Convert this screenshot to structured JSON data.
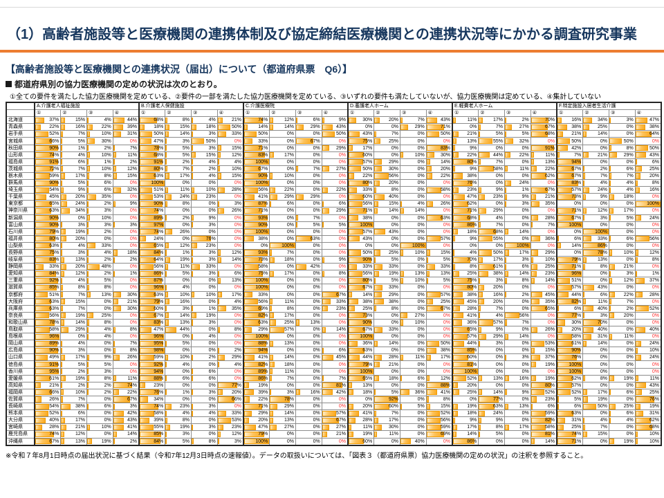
{
  "title": "（1）高齢者施設等と医療機関の連携体制及び協定締結医療機関との連携状況等にかかる調査研究事業",
  "section_title": "【高齢者施設等と医療機関との連携状況（届出）について（都道府県票　Q6）】",
  "bullet": "都道府県別の協力医療機関の定めの状況は次のとおり。",
  "legend": "①全ての要件を満たした協力医療機関を定めている、②要件の一部を満たした協力医療機関を定めている、③いずれの要件も満たしていないが、協力医療機関は定めている、④集計していない",
  "footnote": "※令和７年8月1日時点の届出状況に基づく結果（令和7年12月3日時点の速報値）。データの取扱いについては、「図表３（都道府県票）協力医療機関の定めの状況」の注釈を参照すること。",
  "colors": {
    "accent_orange": "#ed7d31",
    "title_navy": "#17375e",
    "bar_fill_light": "#fff1d2",
    "bar_fill_dark": "#fba81c",
    "bar_border": "#f09c05",
    "red_zero": "#ff2a2a"
  },
  "table": {
    "groups": [
      "A.介護老人福祉施設",
      "B.介護老人保健施設",
      "C.介護医療院",
      "D.養護老人ホーム",
      "E.軽費老人ホーム",
      "F.特定施設入居者生活介護"
    ],
    "sub_cols": [
      "①",
      "②",
      "③",
      "④"
    ],
    "unit": "%",
    "rows": [
      {
        "name": "北海道",
        "v": [
          37,
          15,
          4,
          44,
          68,
          8,
          4,
          21,
          74,
          12,
          6,
          9,
          30,
          20,
          7,
          43,
          11,
          17,
          2,
          70,
          16,
          34,
          3,
          47
        ]
      },
      {
        "name": "青森県",
        "v": [
          22,
          16,
          22,
          39,
          18,
          15,
          18,
          50,
          14,
          14,
          29,
          43,
          0,
          0,
          29,
          71,
          0,
          7,
          27,
          67,
          38,
          25,
          0,
          38
        ]
      },
      {
        "name": "岩手県",
        "v": [
          52,
          7,
          10,
          31,
          50,
          14,
          3,
          33,
          50,
          0,
          0,
          50,
          43,
          7,
          0,
          50,
          21,
          5,
          5,
          68,
          21,
          14,
          0,
          64
        ]
      },
      {
        "name": "宮城県",
        "v": [
          66,
          5,
          30,
          0,
          47,
          3,
          50,
          0,
          33,
          0,
          67,
          0,
          75,
          25,
          0,
          0,
          13,
          55,
          32,
          0,
          50,
          0,
          50,
          0
        ]
      },
      {
        "name": "秋田県",
        "v": [
          90,
          1,
          2,
          7,
          78,
          5,
          3,
          15,
          71,
          0,
          0,
          29,
          17,
          0,
          0,
          83,
          9,
          0,
          0,
          91,
          42,
          0,
          8,
          50
        ]
      },
      {
        "name": "山形県",
        "v": [
          74,
          4,
          10,
          11,
          68,
          5,
          15,
          12,
          83,
          17,
          0,
          0,
          60,
          0,
          10,
          30,
          22,
          44,
          22,
          11,
          7,
          21,
          29,
          43
        ]
      },
      {
        "name": "福島県",
        "v": [
          91,
          6,
          1,
          2,
          91,
          2,
          4,
          4,
          100,
          0,
          0,
          0,
          57,
          29,
          0,
          14,
          80,
          7,
          0,
          13,
          94,
          0,
          0,
          6
        ]
      },
      {
        "name": "茨城県",
        "v": [
          72,
          7,
          10,
          12,
          80,
          7,
          2,
          10,
          67,
          0,
          7,
          27,
          50,
          30,
          0,
          20,
          9,
          58,
          11,
          22,
          67,
          2,
          6,
          25
        ]
      },
      {
        "name": "栃木県",
        "v": [
          59,
          17,
          8,
          15,
          63,
          17,
          4,
          15,
          90,
          10,
          0,
          0,
          22,
          56,
          0,
          22,
          38,
          0,
          0,
          62,
          67,
          7,
          7,
          20
        ]
      },
      {
        "name": "群馬県",
        "v": [
          90,
          5,
          6,
          0,
          100,
          0,
          0,
          0,
          100,
          0,
          0,
          0,
          80,
          20,
          0,
          0,
          76,
          0,
          24,
          0,
          83,
          4,
          4,
          8
        ]
      },
      {
        "name": "埼玉県",
        "v": [
          54,
          9,
          6,
          32,
          51,
          11,
          10,
          28,
          56,
          22,
          0,
          22,
          33,
          8,
          0,
          58,
          23,
          9,
          1,
          67,
          57,
          24,
          4,
          16
        ]
      },
      {
        "name": "千葉県",
        "v": [
          45,
          20,
          35,
          0,
          53,
          24,
          23,
          0,
          41,
          29,
          29,
          0,
          60,
          40,
          0,
          0,
          47,
          23,
          9,
          21,
          73,
          9,
          18,
          0
        ]
      },
      {
        "name": "東京都",
        "v": [
          65,
          24,
          2,
          9,
          90,
          8,
          0,
          3,
          87,
          6,
          0,
          6,
          56,
          15,
          4,
          26,
          62,
          0,
          3,
          35,
          0,
          0,
          0,
          100
        ]
      },
      {
        "name": "神奈川県",
        "v": [
          63,
          34,
          3,
          0,
          74,
          0,
          0,
          26,
          71,
          0,
          0,
          29,
          71,
          14,
          14,
          0,
          71,
          29,
          0,
          0,
          71,
          12,
          17,
          0
        ]
      },
      {
        "name": "新潟県",
        "v": [
          90,
          0,
          10,
          0,
          89,
          2,
          9,
          0,
          93,
          0,
          7,
          0,
          38,
          0,
          0,
          63,
          68,
          4,
          0,
          28,
          67,
          3,
          5,
          24
        ]
      },
      {
        "name": "富山県",
        "v": [
          90,
          3,
          3,
          3,
          97,
          0,
          3,
          0,
          90,
          0,
          5,
          5,
          100,
          0,
          0,
          0,
          86,
          7,
          0,
          7,
          100,
          0,
          0,
          0
        ]
      },
      {
        "name": "石川県",
        "v": [
          79,
          19,
          2,
          0,
          74,
          26,
          0,
          0,
          100,
          0,
          0,
          0,
          57,
          43,
          0,
          0,
          18,
          68,
          14,
          0,
          0,
          100,
          0,
          0
        ]
      },
      {
        "name": "福井県",
        "v": [
          80,
          20,
          0,
          0,
          24,
          0,
          76,
          0,
          38,
          0,
          63,
          0,
          43,
          0,
          0,
          57,
          9,
          55,
          0,
          36,
          6,
          33,
          6,
          56
        ]
      },
      {
        "name": "山梨県",
        "v": [
          63,
          4,
          33,
          0,
          65,
          12,
          23,
          0,
          0,
          100,
          0,
          0,
          0,
          0,
          100,
          0,
          0,
          0,
          100,
          0,
          14,
          86,
          0,
          0
        ]
      },
      {
        "name": "長野県",
        "v": [
          75,
          3,
          4,
          18,
          84,
          1,
          3,
          12,
          93,
          7,
          0,
          0,
          50,
          25,
          10,
          15,
          4,
          50,
          17,
          29,
          0,
          78,
          10,
          12
        ]
      },
      {
        "name": "岐阜県",
        "v": [
          83,
          13,
          2,
          2,
          64,
          19,
          3,
          14,
          73,
          18,
          0,
          9,
          90,
          5,
          0,
          5,
          70,
          17,
          3,
          10,
          79,
          13,
          0,
          8
        ]
      },
      {
        "name": "静岡県",
        "v": [
          33,
          20,
          48,
          0,
          56,
          11,
          33,
          0,
          58,
          0,
          42,
          0,
          33,
          33,
          0,
          33,
          8,
          61,
          6,
          25,
          71,
          8,
          21,
          0
        ]
      },
      {
        "name": "愛知県",
        "v": [
          84,
          12,
          2,
          1,
          86,
          5,
          3,
          6,
          75,
          17,
          0,
          8,
          56,
          19,
          13,
          13,
          25,
          38,
          14,
          23,
          96,
          0,
          3,
          1
        ]
      },
      {
        "name": "三重県",
        "v": [
          92,
          4,
          5,
          0,
          87,
          0,
          0,
          13,
          100,
          0,
          0,
          0,
          80,
          5,
          10,
          5,
          75,
          3,
          8,
          14,
          51,
          0,
          12,
          37
        ]
      },
      {
        "name": "滋賀県",
        "v": [
          85,
          8,
          8,
          0,
          96,
          4,
          0,
          0,
          100,
          0,
          0,
          0,
          67,
          33,
          0,
          0,
          80,
          20,
          0,
          0,
          57,
          43,
          0,
          0
        ]
      },
      {
        "name": "京都府",
        "v": [
          51,
          7,
          13,
          30,
          63,
          10,
          10,
          17,
          33,
          0,
          0,
          67,
          14,
          29,
          0,
          57,
          38,
          16,
          2,
          45,
          44,
          6,
          22,
          28
        ]
      },
      {
        "name": "大阪府",
        "v": [
          63,
          15,
          0,
          21,
          79,
          16,
          0,
          4,
          56,
          11,
          0,
          33,
          38,
          38,
          0,
          25,
          45,
          20,
          0,
          35,
          82,
          11,
          7,
          0
        ]
      },
      {
        "name": "兵庫県",
        "v": [
          63,
          7,
          0,
          30,
          60,
          3,
          1,
          35,
          69,
          8,
          0,
          23,
          25,
          8,
          0,
          67,
          28,
          7,
          0,
          65,
          6,
          40,
          2,
          52
        ]
      },
      {
        "name": "奈良県",
        "v": [
          56,
          19,
          25,
          0,
          67,
          14,
          19,
          0,
          82,
          17,
          0,
          0,
          73,
          0,
          27,
          0,
          41,
          4,
          56,
          0,
          77,
          3,
          20,
          0
        ]
      },
      {
        "name": "和歌山県",
        "v": [
          78,
          14,
          8,
          0,
          83,
          13,
          3,
          0,
          63,
          25,
          13,
          0,
          90,
          0,
          10,
          0,
          36,
          57,
          7,
          0,
          30,
          70,
          0,
          0
        ]
      },
      {
        "name": "鳥取県",
        "v": [
          58,
          29,
          4,
          8,
          47,
          44,
          0,
          8,
          29,
          57,
          0,
          14,
          67,
          33,
          0,
          0,
          65,
          9,
          0,
          26,
          20,
          40,
          0,
          40
        ]
      },
      {
        "name": "島根県",
        "v": [
          96,
          0,
          4,
          0,
          96,
          0,
          4,
          0,
          100,
          0,
          0,
          0,
          100,
          0,
          0,
          0,
          57,
          29,
          14,
          0,
          58,
          31,
          11,
          0
        ]
      },
      {
        "name": "岡山県",
        "v": [
          89,
          4,
          0,
          7,
          95,
          5,
          0,
          0,
          88,
          13,
          0,
          0,
          36,
          14,
          0,
          50,
          44,
          3,
          0,
          53,
          61,
          14,
          0,
          24
        ]
      },
      {
        "name": "広島県",
        "v": [
          90,
          3,
          0,
          8,
          98,
          0,
          0,
          2,
          94,
          0,
          0,
          6,
          63,
          0,
          0,
          38,
          85,
          0,
          0,
          15,
          90,
          0,
          0,
          10
        ]
      },
      {
        "name": "山口県",
        "v": [
          49,
          17,
          9,
          26,
          59,
          10,
          2,
          29,
          41,
          14,
          0,
          45,
          44,
          28,
          11,
          17,
          60,
          0,
          3,
          37,
          76,
          0,
          0,
          24
        ]
      },
      {
        "name": "徳島県",
        "v": [
          91,
          5,
          5,
          0,
          92,
          4,
          0,
          4,
          82,
          18,
          0,
          0,
          79,
          21,
          0,
          0,
          81,
          0,
          0,
          19,
          100,
          0,
          0,
          0
        ]
      },
      {
        "name": "香川県",
        "v": [
          95,
          2,
          3,
          0,
          94,
          0,
          6,
          0,
          89,
          11,
          0,
          0,
          100,
          0,
          0,
          0,
          100,
          0,
          0,
          0,
          100,
          0,
          0,
          0
        ]
      },
      {
        "name": "愛媛県",
        "v": [
          61,
          19,
          8,
          11,
          88,
          6,
          6,
          0,
          86,
          7,
          0,
          7,
          65,
          18,
          6,
          12,
          52,
          13,
          16,
          19,
          62,
          8,
          19,
          11
        ]
      },
      {
        "name": "高知県",
        "v": [
          21,
          2,
          2,
          74,
          23,
          0,
          0,
          77,
          19,
          0,
          0,
          81,
          13,
          0,
          0,
          88,
          20,
          0,
          0,
          80,
          57,
          0,
          0,
          43
        ]
      },
      {
        "name": "福岡県",
        "v": [
          66,
          10,
          2,
          22,
          76,
          1,
          3,
          20,
          39,
          3,
          16,
          42,
          18,
          5,
          36,
          41,
          25,
          14,
          9,
          52,
          52,
          17,
          6,
          25
        ]
      },
      {
        "name": "佐賀県",
        "v": [
          26,
          7,
          0,
          67,
          34,
          0,
          0,
          66,
          22,
          78,
          0,
          0,
          0,
          92,
          0,
          8,
          0,
          77,
          0,
          23,
          5,
          19,
          0,
          76
        ]
      },
      {
        "name": "長崎県",
        "v": [
          54,
          38,
          6,
          3,
          74,
          23,
          3,
          0,
          71,
          29,
          0,
          0,
          20,
          60,
          5,
          15,
          19,
          63,
          13,
          6,
          6,
          50,
          25,
          19
        ]
      },
      {
        "name": "熊本県",
        "v": [
          52,
          6,
          0,
          42,
          58,
          4,
          4,
          33,
          29,
          14,
          0,
          57,
          41,
          7,
          0,
          52,
          18,
          24,
          0,
          59,
          63,
          0,
          6,
          31
        ]
      },
      {
        "name": "大分県",
        "v": [
          40,
          17,
          0,
          43,
          39,
          8,
          0,
          53,
          20,
          13,
          0,
          67,
          28,
          17,
          0,
          56,
          9,
          9,
          0,
          82,
          31,
          4,
          4,
          62
        ]
      },
      {
        "name": "宮崎県",
        "v": [
          28,
          21,
          10,
          41,
          55,
          19,
          3,
          23,
          47,
          27,
          0,
          27,
          11,
          30,
          0,
          59,
          17,
          8,
          17,
          58,
          25,
          7,
          0,
          68
        ]
      },
      {
        "name": "鹿児島県",
        "v": [
          74,
          12,
          0,
          14,
          85,
          3,
          0,
          12,
          79,
          0,
          0,
          21,
          19,
          11,
          0,
          69,
          14,
          5,
          0,
          81,
          74,
          15,
          0,
          10
        ]
      },
      {
        "name": "沖縄県",
        "v": [
          67,
          13,
          19,
          2,
          84,
          5,
          8,
          3,
          100,
          0,
          0,
          0,
          60,
          0,
          40,
          0,
          86,
          0,
          0,
          14,
          71,
          0,
          19,
          10
        ]
      }
    ]
  }
}
